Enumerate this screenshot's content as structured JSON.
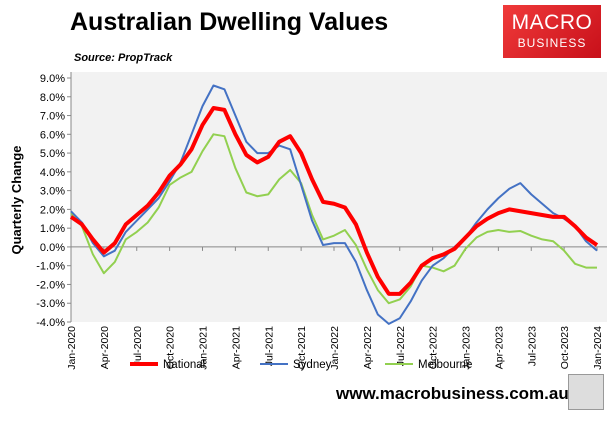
{
  "header": {
    "title": "Australian Dwelling Values",
    "source": "Source: PropTrack",
    "logo_text_1": "MACRO",
    "logo_text_2": "BUSINESS"
  },
  "footer": {
    "url": "www.macrobusiness.com.au"
  },
  "chart_data": {
    "type": "line",
    "title": "Australian Dwelling Values",
    "ylabel": "Quarterly Change",
    "xlabel": "",
    "ylim": [
      -4,
      9
    ],
    "yticks": [
      "-4.0%",
      "-3.0%",
      "-2.0%",
      "-1.0%",
      "0.0%",
      "1.0%",
      "2.0%",
      "3.0%",
      "4.0%",
      "5.0%",
      "6.0%",
      "7.0%",
      "8.0%",
      "9.0%"
    ],
    "xtick_labels": [
      "Jan-2020",
      "Apr-2020",
      "Jul-2020",
      "Oct-2020",
      "Jan-2021",
      "Apr-2021",
      "Jul-2021",
      "Oct-2021",
      "Jan-2022",
      "Apr-2022",
      "Jul-2022",
      "Oct-2022",
      "Jan-2023",
      "Apr-2023",
      "Jul-2023",
      "Oct-2023",
      "Jan-2024"
    ],
    "x_start": "Jan-2020",
    "x_end": "Jan-2024",
    "x_frequency": "monthly",
    "grid": false,
    "legend": "bottom",
    "series": [
      {
        "name": "National",
        "color": "#ff0000",
        "values": [
          1.6,
          1.2,
          0.4,
          -0.3,
          0.2,
          1.2,
          1.7,
          2.2,
          2.9,
          3.8,
          4.4,
          5.2,
          6.5,
          7.4,
          7.3,
          6.0,
          4.9,
          4.5,
          4.8,
          5.6,
          5.9,
          5.0,
          3.6,
          2.4,
          2.3,
          2.1,
          1.2,
          -0.3,
          -1.6,
          -2.5,
          -2.5,
          -1.9,
          -1.0,
          -0.6,
          -0.4,
          -0.1,
          0.5,
          1.1,
          1.5,
          1.8,
          2.0,
          1.9,
          1.8,
          1.7,
          1.6,
          1.6,
          1.1,
          0.5,
          0.1
        ]
      },
      {
        "name": "Sydney",
        "color": "#4472c4",
        "values": [
          1.9,
          1.3,
          0.2,
          -0.5,
          -0.2,
          0.8,
          1.4,
          2.0,
          2.6,
          3.5,
          4.5,
          6.0,
          7.5,
          8.6,
          8.4,
          7.0,
          5.6,
          5.0,
          5.0,
          5.4,
          5.2,
          3.3,
          1.4,
          0.1,
          0.2,
          0.2,
          -0.8,
          -2.3,
          -3.6,
          -4.1,
          -3.8,
          -2.9,
          -1.8,
          -1.0,
          -0.6,
          0.0,
          0.5,
          1.3,
          2.0,
          2.6,
          3.1,
          3.4,
          2.8,
          2.3,
          1.8,
          1.5,
          1.1,
          0.3,
          -0.2
        ]
      },
      {
        "name": "Melbourne",
        "color": "#92d050",
        "values": [
          1.8,
          1.1,
          -0.4,
          -1.4,
          -0.8,
          0.4,
          0.8,
          1.3,
          2.1,
          3.3,
          3.7,
          4.0,
          5.1,
          6.0,
          5.9,
          4.2,
          2.9,
          2.7,
          2.8,
          3.6,
          4.1,
          3.4,
          1.7,
          0.4,
          0.6,
          0.9,
          0.1,
          -1.2,
          -2.3,
          -3.0,
          -2.8,
          -2.1,
          -1.0,
          -1.1,
          -1.3,
          -1.0,
          -0.1,
          0.5,
          0.8,
          0.9,
          0.8,
          0.85,
          0.6,
          0.4,
          0.3,
          -0.2,
          -0.9,
          -1.1,
          -1.1
        ]
      }
    ]
  }
}
